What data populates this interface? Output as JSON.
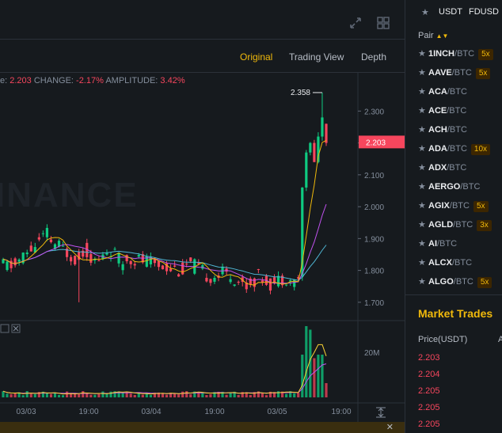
{
  "toolbar": {
    "tabs": [
      {
        "label": "Original",
        "active": true
      },
      {
        "label": "Trading View",
        "active": false
      },
      {
        "label": "Depth",
        "active": false
      }
    ]
  },
  "info": {
    "last_prefix": "e:",
    "last_value": "2.203",
    "change_label": "CHANGE:",
    "change_value": "-2.17%",
    "amplitude_label": "AMPLITUDE:",
    "amplitude_value": "3.42%"
  },
  "watermark": "INANCE",
  "chart_data": {
    "type": "candlestick",
    "y_ticks": [
      "2.300",
      "2.200",
      "2.100",
      "2.000",
      "1.900",
      "1.800",
      "1.700"
    ],
    "ylim": [
      1.65,
      2.42
    ],
    "current_price_label": "2.203",
    "high_label": "2.358",
    "x_ticks": [
      "03/03",
      "19:00",
      "03/04",
      "19:00",
      "03/05",
      "19:00"
    ],
    "volume_tick": "20M",
    "colors": {
      "up": "#0ecb81",
      "down": "#f6465d",
      "ma_fast": "#f0b90b",
      "ma_mid": "#c252f0",
      "ma_slow": "#4fb6d4"
    }
  },
  "sidebar": {
    "favorites": [
      "USDT",
      "FDUSD"
    ],
    "pair_header": "Pair",
    "pairs": [
      {
        "base": "1INCH",
        "quote": "/BTC",
        "lev": "5x"
      },
      {
        "base": "AAVE",
        "quote": "/BTC",
        "lev": "5x"
      },
      {
        "base": "ACA",
        "quote": "/BTC",
        "lev": ""
      },
      {
        "base": "ACE",
        "quote": "/BTC",
        "lev": ""
      },
      {
        "base": "ACH",
        "quote": "/BTC",
        "lev": ""
      },
      {
        "base": "ADA",
        "quote": "/BTC",
        "lev": "10x"
      },
      {
        "base": "ADX",
        "quote": "/BTC",
        "lev": ""
      },
      {
        "base": "AERGO",
        "quote": "/BTC",
        "lev": ""
      },
      {
        "base": "AGIX",
        "quote": "/BTC",
        "lev": "5x"
      },
      {
        "base": "AGLD",
        "quote": "/BTC",
        "lev": "3x"
      },
      {
        "base": "AI",
        "quote": "/BTC",
        "lev": ""
      },
      {
        "base": "ALCX",
        "quote": "/BTC",
        "lev": ""
      },
      {
        "base": "ALGO",
        "quote": "/BTC",
        "lev": "5x"
      }
    ],
    "market_trades_title": "Market Trades",
    "price_header": "Price(USDT)",
    "amount_header": "A",
    "trades": [
      "2.203",
      "2.204",
      "2.205",
      "2.205",
      "2.205"
    ]
  }
}
